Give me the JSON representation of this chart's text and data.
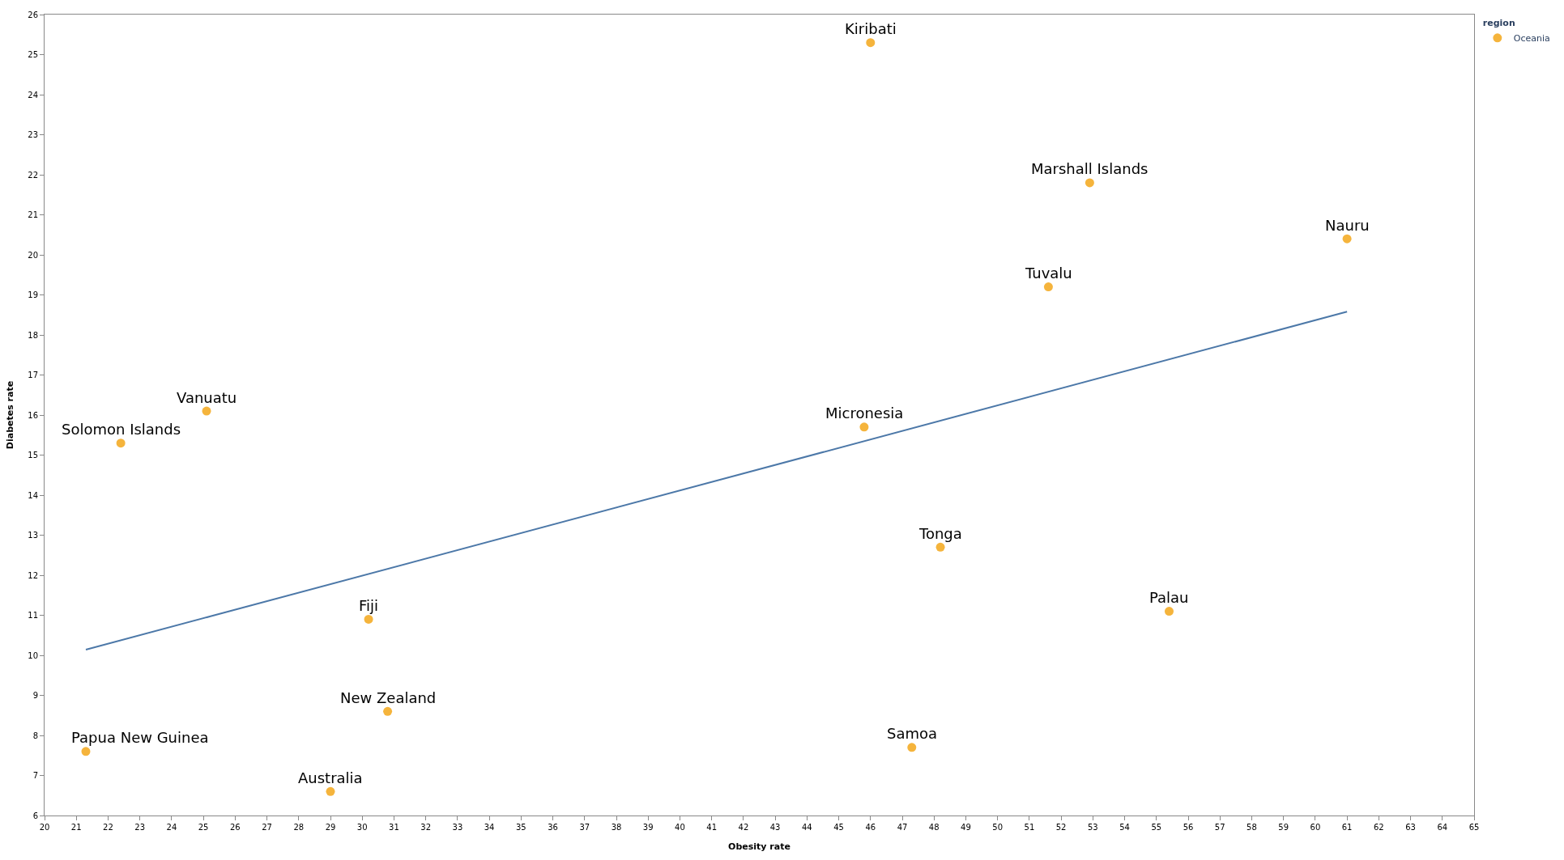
{
  "chart_data": {
    "type": "scatter",
    "xlabel": "Obesity rate",
    "ylabel": "Diabetes rate",
    "legend_title": "region",
    "legend": "top right",
    "marker": "circle",
    "xlim": [
      20,
      65
    ],
    "xticks": [
      20,
      21,
      22,
      23,
      24,
      25,
      26,
      27,
      28,
      29,
      30,
      31,
      32,
      33,
      34,
      35,
      36,
      37,
      38,
      39,
      40,
      41,
      42,
      43,
      44,
      45,
      46,
      47,
      48,
      49,
      50,
      51,
      52,
      53,
      54,
      55,
      56,
      57,
      58,
      59,
      60,
      61,
      62,
      63,
      64,
      65
    ],
    "ylim": [
      6,
      26
    ],
    "yticks": [
      6,
      7,
      8,
      9,
      10,
      11,
      12,
      13,
      14,
      15,
      16,
      17,
      18,
      19,
      20,
      21,
      22,
      23,
      24,
      25,
      26
    ],
    "series": [
      {
        "name": "Oceania",
        "color": "#f5b43c",
        "x": [
          46.0,
          52.9,
          61.0,
          51.6,
          25.1,
          22.4,
          45.8,
          48.2,
          55.4,
          30.2,
          30.8,
          47.3,
          21.3,
          29.0
        ],
        "values": [
          25.3,
          21.8,
          20.4,
          19.2,
          16.1,
          15.3,
          15.7,
          12.7,
          11.1,
          10.9,
          8.6,
          7.7,
          7.6,
          6.6
        ]
      },
      {
        "type": "line",
        "color": "#4c78a8",
        "line_style": "solid",
        "marker": "none",
        "x": [
          21.3,
          61.0
        ],
        "values": [
          10.14,
          18.58
        ]
      }
    ],
    "annotations": [
      {
        "text": "Kiribati",
        "x": 46.0,
        "y": 25.3
      },
      {
        "text": "Marshall Islands",
        "x": 52.9,
        "y": 21.8
      },
      {
        "text": "Nauru",
        "x": 61.0,
        "y": 20.4
      },
      {
        "text": "Tuvalu",
        "x": 51.6,
        "y": 19.2
      },
      {
        "text": "Vanuatu",
        "x": 25.1,
        "y": 16.1
      },
      {
        "text": "Solomon Islands",
        "x": 22.4,
        "y": 15.3
      },
      {
        "text": "Micronesia",
        "x": 45.8,
        "y": 15.7
      },
      {
        "text": "Tonga",
        "x": 48.2,
        "y": 12.7
      },
      {
        "text": "Palau",
        "x": 55.4,
        "y": 11.1
      },
      {
        "text": "Fiji",
        "x": 30.2,
        "y": 10.9
      },
      {
        "text": "New Zealand",
        "x": 30.8,
        "y": 8.6
      },
      {
        "text": "Samoa",
        "x": 47.3,
        "y": 7.7
      },
      {
        "text": "Papua New Guinea",
        "x": 21.3,
        "y": 7.6
      },
      {
        "text": "Australia",
        "x": 29.0,
        "y": 6.6
      }
    ]
  }
}
